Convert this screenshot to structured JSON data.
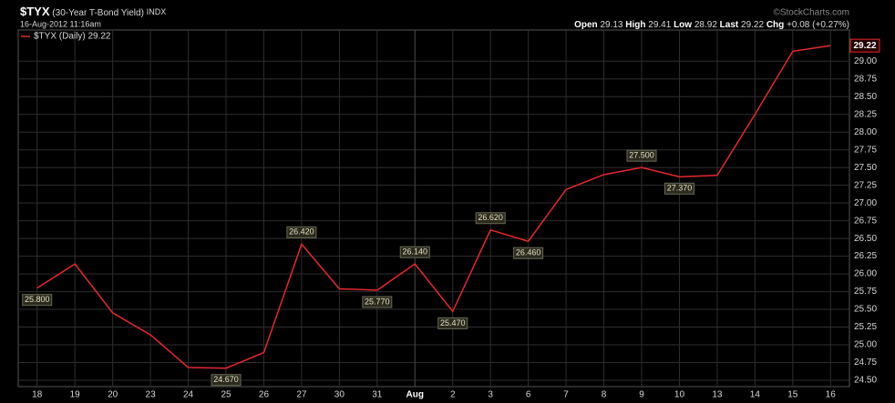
{
  "chart_data": {
    "type": "line",
    "title": "$TYX",
    "subtitle": "(30-Year T-Bond Yield)",
    "exchange": "INDX",
    "date": "16-Aug-2012 11:16am",
    "credit": "©StockCharts.com",
    "quote": [
      {
        "label": "Open",
        "value": 29.13
      },
      {
        "label": "High",
        "value": 29.41
      },
      {
        "label": "Low",
        "value": 28.92
      },
      {
        "label": "Last",
        "value": 29.22
      },
      {
        "label": "Chg",
        "value": "+0.08 (+0.27%)"
      }
    ],
    "last_label": 29.22,
    "categories": [
      "18",
      "19",
      "20",
      "23",
      "24",
      "25",
      "26",
      "27",
      "30",
      "31",
      "Aug",
      "2",
      "3",
      "6",
      "7",
      "8",
      "9",
      "10",
      "13",
      "14",
      "15",
      "16"
    ],
    "series": [
      {
        "name": "$TYX (Daily) 29.22",
        "color": "#e8282c",
        "values": [
          25.8,
          26.14,
          25.45,
          25.14,
          24.68,
          24.67,
          24.89,
          26.42,
          25.79,
          25.77,
          26.14,
          25.47,
          26.62,
          26.46,
          27.19,
          27.4,
          27.5,
          27.37,
          27.39,
          28.25,
          29.14,
          29.22
        ],
        "value_labels": [
          "25.800",
          null,
          null,
          null,
          null,
          "24.670",
          null,
          "26.420",
          null,
          "25.770",
          "26.140",
          "25.470",
          "26.620",
          "26.460",
          null,
          null,
          "27.500",
          "27.370",
          null,
          null,
          null,
          null
        ]
      }
    ],
    "ylim": [
      24.41,
      29.44
    ],
    "yticks": [
      {
        "value": 24.5,
        "label": "24.50"
      },
      {
        "value": 24.75,
        "label": "24.75"
      },
      {
        "value": 25,
        "label": "25.00"
      },
      {
        "value": 25.25,
        "label": "25.25"
      },
      {
        "value": 25.5,
        "label": "25.50"
      },
      {
        "value": 25.75,
        "label": "25.75"
      },
      {
        "value": 26,
        "label": "26.00"
      },
      {
        "value": 26.25,
        "label": "26.25"
      },
      {
        "value": 26.5,
        "label": "26.50"
      },
      {
        "value": 26.75,
        "label": "26.75"
      },
      {
        "value": 27,
        "label": "27.00"
      },
      {
        "value": 27.25,
        "label": "27.25"
      },
      {
        "value": 27.5,
        "label": "27.50"
      },
      {
        "value": 27.75,
        "label": "27.75"
      },
      {
        "value": 28,
        "label": "28.00"
      },
      {
        "value": 28.25,
        "label": "28.25"
      },
      {
        "value": 28.5,
        "label": "28.50"
      },
      {
        "value": 28.75,
        "label": "28.75"
      },
      {
        "value": 29,
        "label": "29.00"
      }
    ],
    "grid": true
  }
}
